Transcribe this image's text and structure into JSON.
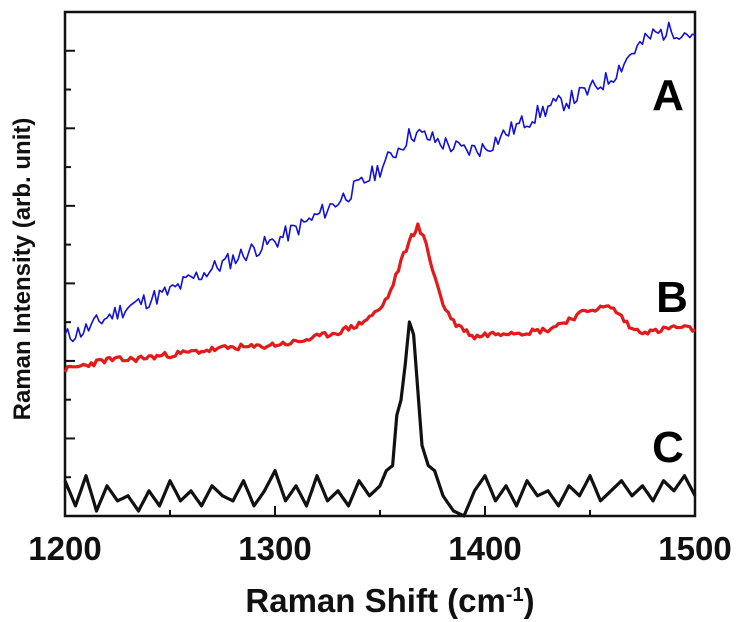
{
  "chart_data": {
    "type": "line",
    "title": "",
    "xlabel": "Raman Shift (cm",
    "xlabel_sup": "-1",
    "xlabel_close": ")",
    "ylabel": "Raman Intensity (arb. unit)",
    "xlim": [
      1200,
      1500
    ],
    "ylim": [
      0,
      1
    ],
    "x_ticks": [
      1200,
      1300,
      1400,
      1500
    ],
    "x_tick_labels": [
      "1200",
      "1300",
      "1400",
      "1500"
    ],
    "y_tick_labels_shown": false,
    "grid": false,
    "legend": "none",
    "series": [
      {
        "name": "A",
        "color": "#1010d8",
        "x": [
          1200,
          1210,
          1220,
          1230,
          1240,
          1250,
          1260,
          1270,
          1280,
          1290,
          1300,
          1310,
          1320,
          1330,
          1340,
          1350,
          1360,
          1365,
          1370,
          1380,
          1390,
          1400,
          1410,
          1420,
          1430,
          1440,
          1450,
          1460,
          1470,
          1480,
          1490,
          1500
        ],
        "y": [
          0.355,
          0.37,
          0.395,
          0.415,
          0.43,
          0.445,
          0.47,
          0.49,
          0.51,
          0.53,
          0.545,
          0.57,
          0.595,
          0.625,
          0.655,
          0.69,
          0.735,
          0.76,
          0.755,
          0.74,
          0.725,
          0.73,
          0.76,
          0.785,
          0.81,
          0.825,
          0.845,
          0.87,
          0.92,
          0.955,
          0.965,
          0.955
        ]
      },
      {
        "name": "B",
        "color": "#e41919",
        "x": [
          1200,
          1210,
          1220,
          1230,
          1240,
          1250,
          1260,
          1270,
          1280,
          1290,
          1300,
          1310,
          1320,
          1330,
          1340,
          1350,
          1355,
          1360,
          1365,
          1368,
          1372,
          1375,
          1380,
          1385,
          1390,
          1395,
          1400,
          1410,
          1420,
          1430,
          1440,
          1450,
          1460,
          1465,
          1470,
          1480,
          1490,
          1500
        ],
        "y": [
          0.29,
          0.3,
          0.31,
          0.31,
          0.315,
          0.32,
          0.325,
          0.33,
          0.335,
          0.335,
          0.34,
          0.345,
          0.355,
          0.365,
          0.38,
          0.41,
          0.445,
          0.505,
          0.555,
          0.575,
          0.54,
          0.49,
          0.42,
          0.385,
          0.37,
          0.355,
          0.36,
          0.365,
          0.365,
          0.37,
          0.39,
          0.41,
          0.415,
          0.395,
          0.37,
          0.365,
          0.375,
          0.37
        ]
      },
      {
        "name": "C",
        "color": "#111111",
        "x": [
          1200,
          1205,
          1210,
          1215,
          1220,
          1225,
          1230,
          1235,
          1240,
          1245,
          1250,
          1255,
          1260,
          1265,
          1270,
          1275,
          1280,
          1285,
          1290,
          1295,
          1300,
          1305,
          1310,
          1315,
          1320,
          1325,
          1330,
          1335,
          1340,
          1345,
          1350,
          1353,
          1356,
          1358,
          1360,
          1362,
          1364,
          1366,
          1368,
          1370,
          1373,
          1376,
          1380,
          1385,
          1390,
          1395,
          1400,
          1405,
          1410,
          1415,
          1420,
          1425,
          1430,
          1435,
          1440,
          1445,
          1450,
          1455,
          1460,
          1465,
          1470,
          1475,
          1480,
          1485,
          1490,
          1495,
          1500
        ],
        "y": [
          0.07,
          0.02,
          0.08,
          0.01,
          0.06,
          0.03,
          0.04,
          0.01,
          0.05,
          0.02,
          0.07,
          0.03,
          0.05,
          0.02,
          0.06,
          0.04,
          0.03,
          0.07,
          0.02,
          0.05,
          0.09,
          0.03,
          0.06,
          0.02,
          0.08,
          0.03,
          0.05,
          0.02,
          0.07,
          0.04,
          0.06,
          0.09,
          0.1,
          0.2,
          0.23,
          0.3,
          0.385,
          0.36,
          0.25,
          0.14,
          0.1,
          0.09,
          0.04,
          0.01,
          0.0,
          0.05,
          0.08,
          0.03,
          0.06,
          0.02,
          0.07,
          0.04,
          0.05,
          0.02,
          0.06,
          0.04,
          0.08,
          0.03,
          0.05,
          0.07,
          0.04,
          0.06,
          0.03,
          0.07,
          0.05,
          0.08,
          0.04
        ]
      }
    ],
    "annotations": [
      "A",
      "B",
      "C"
    ]
  }
}
